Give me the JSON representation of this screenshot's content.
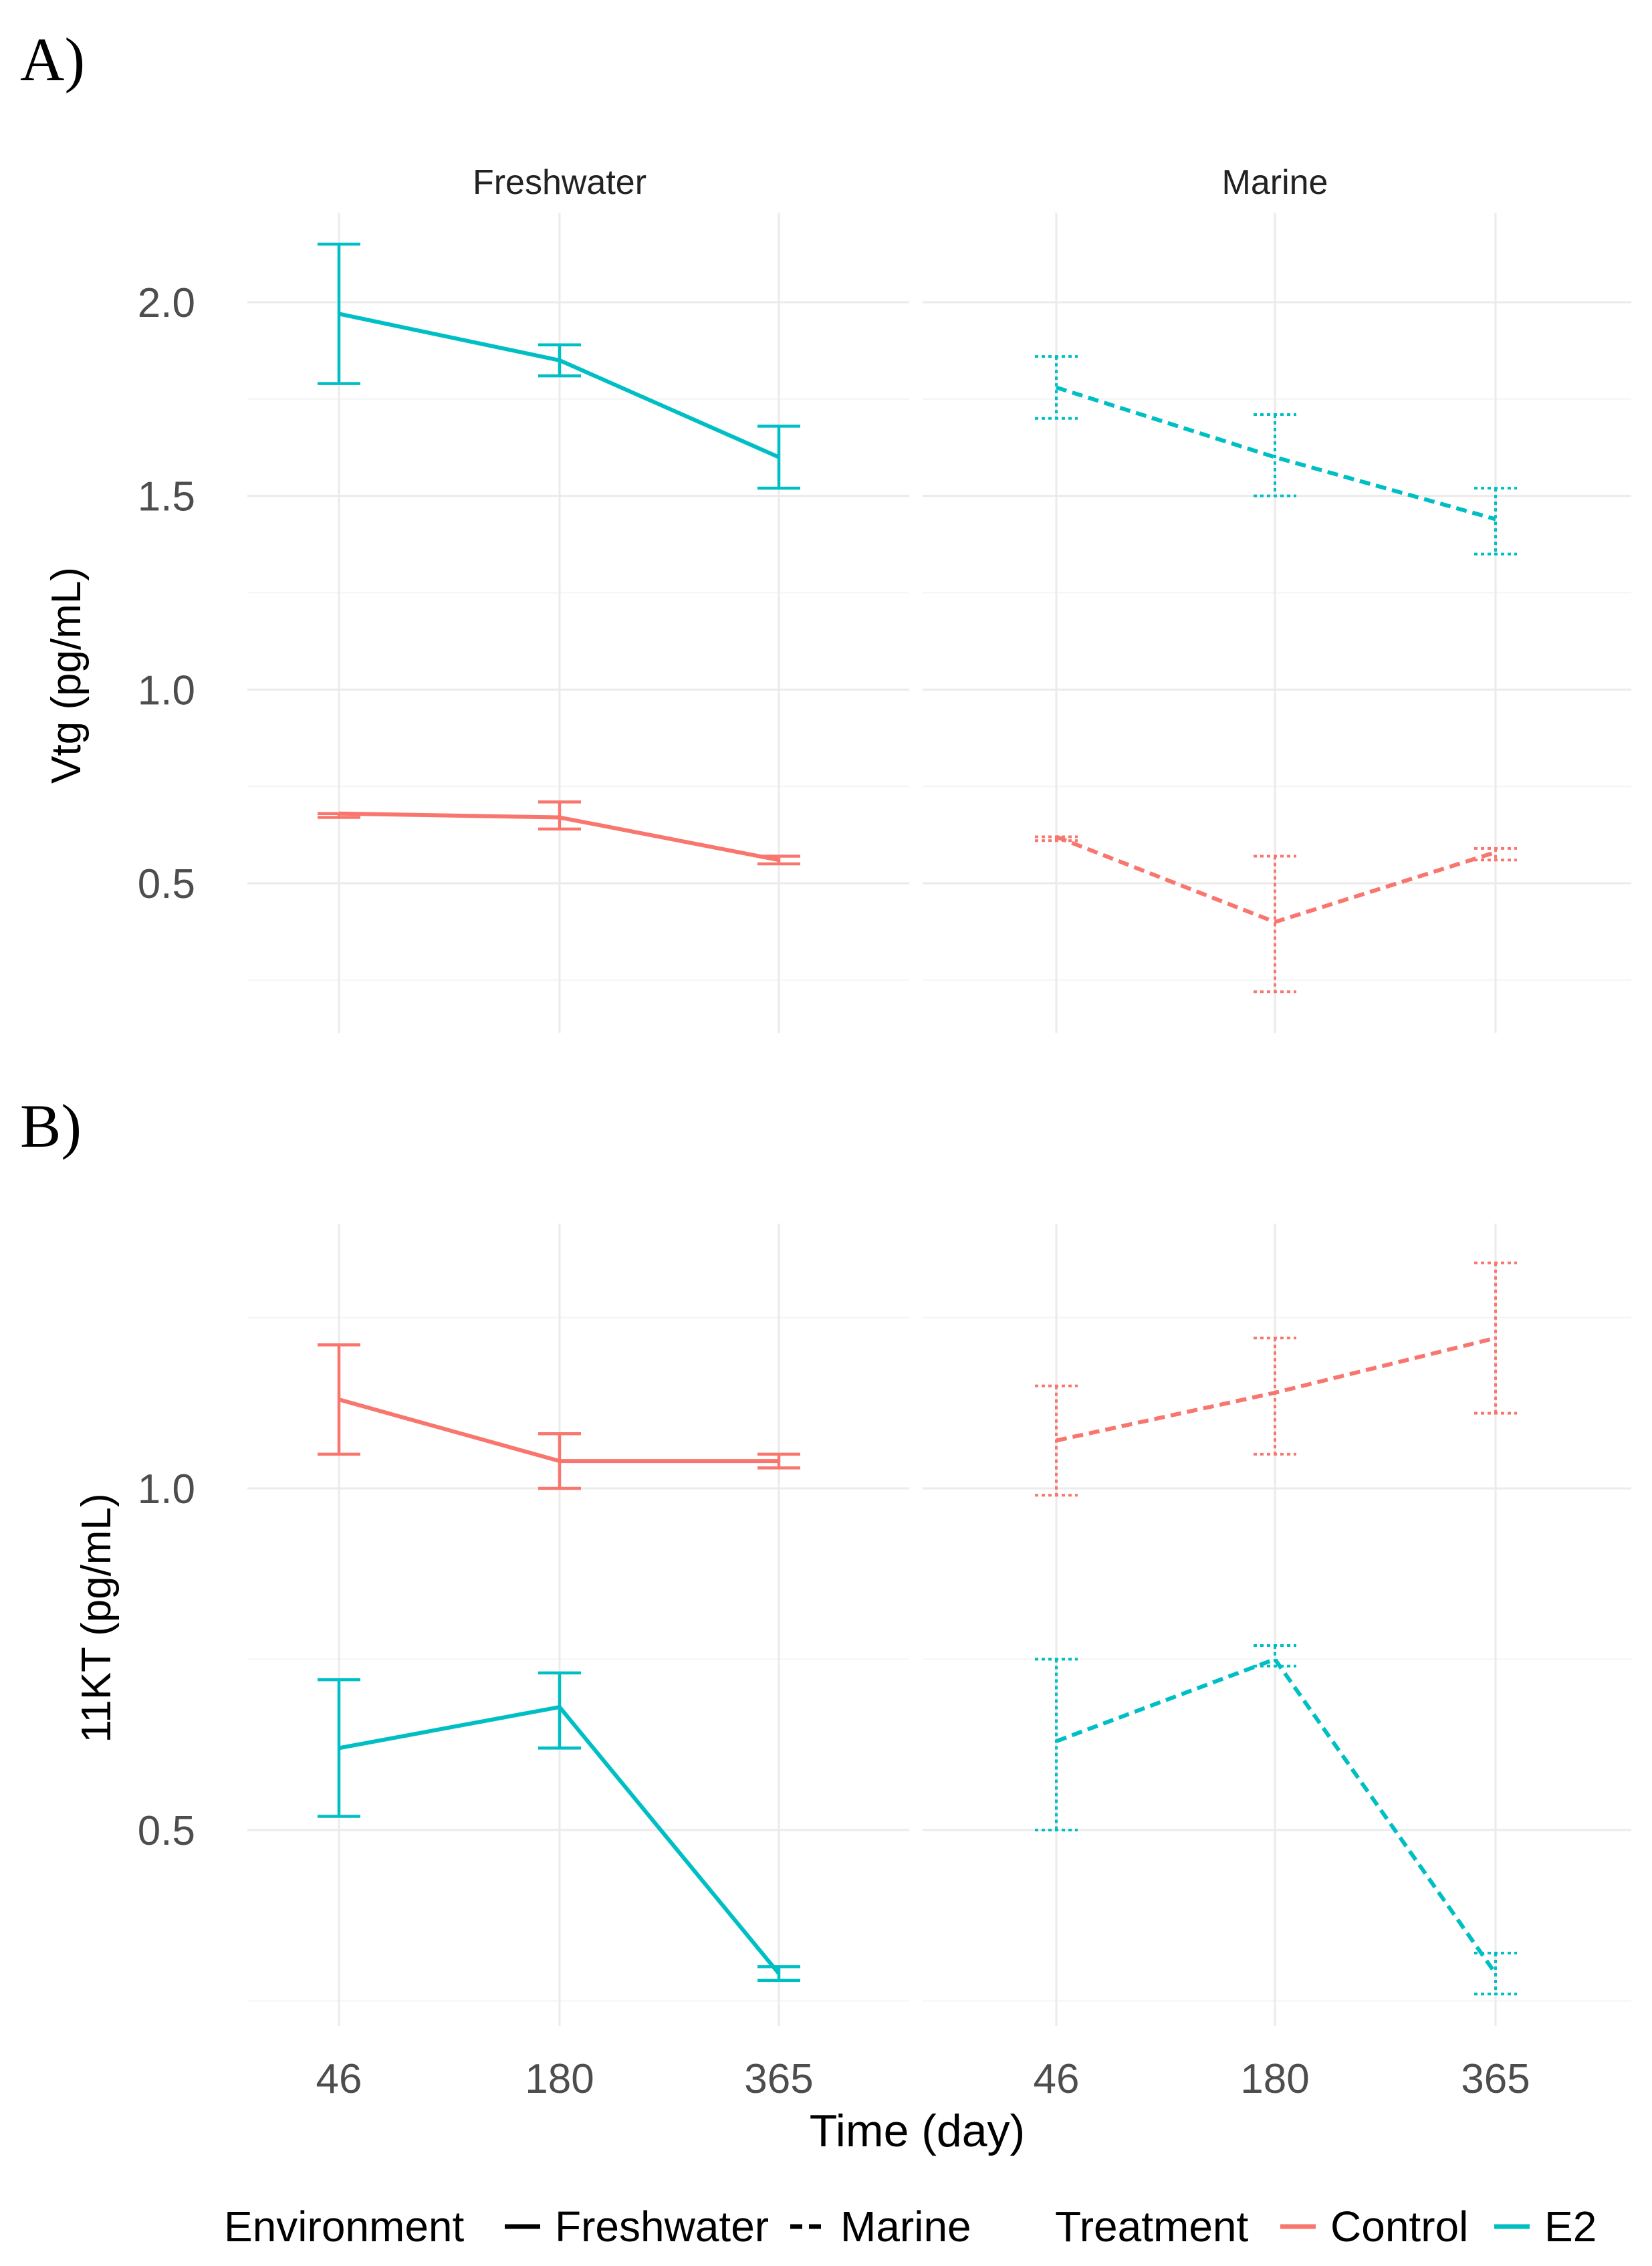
{
  "colors": {
    "Control": "#F8766D",
    "E2": "#00BFC4"
  },
  "chart_data": [
    {
      "type": "line",
      "panel_label": "A)",
      "facets": [
        "Freshwater",
        "Marine"
      ],
      "ylabel": "Vtg (pg/mL)",
      "xlabel": "",
      "x": [
        46,
        180,
        365
      ],
      "x_tick_labels": [],
      "ylim": [
        0.25,
        2.25
      ],
      "y_ticks": [
        0.5,
        1.0,
        1.5,
        2.0
      ],
      "y_tick_labels": [
        "0.5",
        "1.0",
        "1.5",
        "2.0"
      ],
      "grid": true,
      "series": [
        {
          "facet": "Freshwater",
          "treatment": "E2",
          "environment": "Freshwater",
          "values": [
            1.97,
            1.85,
            1.6
          ],
          "err_low": [
            1.79,
            1.81,
            1.52
          ],
          "err_high": [
            2.15,
            1.89,
            1.68
          ]
        },
        {
          "facet": "Freshwater",
          "treatment": "Control",
          "environment": "Freshwater",
          "values": [
            0.68,
            0.67,
            0.56
          ],
          "err_low": [
            0.67,
            0.64,
            0.55
          ],
          "err_high": [
            0.68,
            0.71,
            0.57
          ]
        },
        {
          "facet": "Marine",
          "treatment": "E2",
          "environment": "Marine",
          "values": [
            1.78,
            1.6,
            1.44
          ],
          "err_low": [
            1.7,
            1.5,
            1.35
          ],
          "err_high": [
            1.86,
            1.71,
            1.52
          ]
        },
        {
          "facet": "Marine",
          "treatment": "Control",
          "environment": "Marine",
          "values": [
            0.62,
            0.4,
            0.58
          ],
          "err_low": [
            0.61,
            0.22,
            0.56
          ],
          "err_high": [
            0.62,
            0.57,
            0.59
          ]
        }
      ]
    },
    {
      "type": "line",
      "panel_label": "B)",
      "facets": [
        "Freshwater",
        "Marine"
      ],
      "ylabel": "11KT (pg/mL)",
      "xlabel": "Time (day)",
      "x": [
        46,
        180,
        365
      ],
      "x_tick_labels": [
        "46",
        "180",
        "365"
      ],
      "ylim": [
        0.25,
        1.42
      ],
      "y_ticks": [
        0.5,
        1.0
      ],
      "y_tick_labels": [
        "0.5",
        "1.0"
      ],
      "grid": true,
      "series": [
        {
          "facet": "Freshwater",
          "treatment": "Control",
          "environment": "Freshwater",
          "values": [
            1.13,
            1.04,
            1.04
          ],
          "err_low": [
            1.05,
            1.0,
            1.03
          ],
          "err_high": [
            1.21,
            1.08,
            1.05
          ]
        },
        {
          "facet": "Freshwater",
          "treatment": "E2",
          "environment": "Freshwater",
          "values": [
            0.62,
            0.68,
            0.29
          ],
          "err_low": [
            0.52,
            0.62,
            0.28
          ],
          "err_high": [
            0.72,
            0.73,
            0.3
          ]
        },
        {
          "facet": "Marine",
          "treatment": "Control",
          "environment": "Marine",
          "values": [
            1.07,
            1.14,
            1.22
          ],
          "err_low": [
            0.99,
            1.05,
            1.11
          ],
          "err_high": [
            1.15,
            1.22,
            1.33
          ]
        },
        {
          "facet": "Marine",
          "treatment": "E2",
          "environment": "Marine",
          "values": [
            0.63,
            0.75,
            0.29
          ],
          "err_low": [
            0.5,
            0.74,
            0.26
          ],
          "err_high": [
            0.75,
            0.77,
            0.32
          ]
        }
      ]
    }
  ],
  "legend": {
    "environment_title": "Environment",
    "environment_items": [
      {
        "label": "Freshwater",
        "dash": "solid"
      },
      {
        "label": "Marine",
        "dash": "dashed"
      }
    ],
    "treatment_title": "Treatment",
    "treatment_items": [
      {
        "label": "Control",
        "color": "#F8766D"
      },
      {
        "label": "E2",
        "color": "#00BFC4"
      }
    ]
  }
}
